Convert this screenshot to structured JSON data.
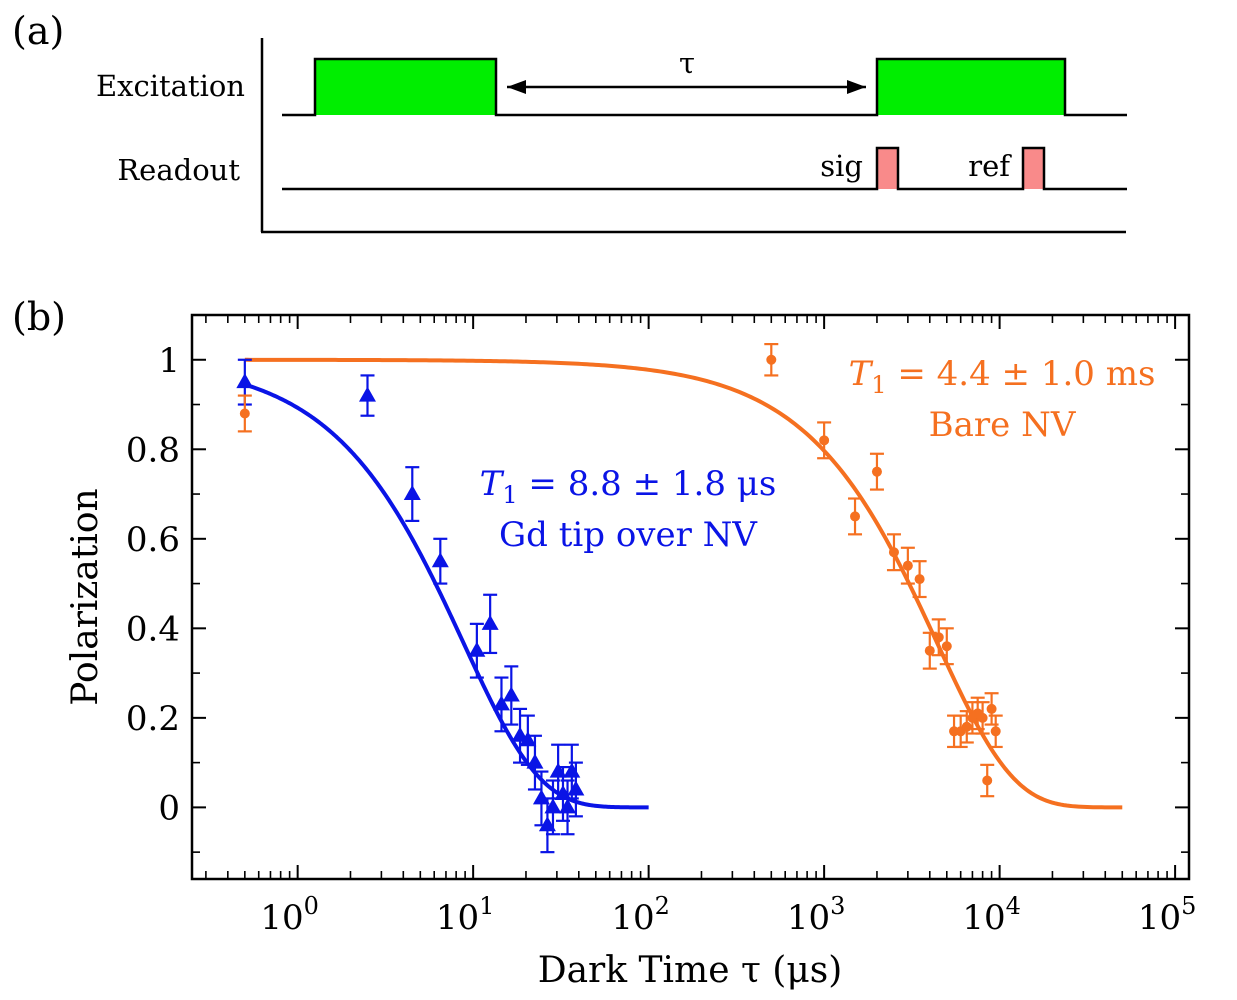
{
  "panel_a": {
    "label": "(a)",
    "rows": {
      "excitation": "Excitation",
      "readout": "Readout"
    },
    "tau_label": "τ",
    "pulse_labels": {
      "sig": "sig",
      "ref": "ref"
    },
    "colors": {
      "excitation_pulse": "#00ee00",
      "readout_pulse": "#f98a8a"
    }
  },
  "panel_b": {
    "label": "(b)"
  },
  "chart_data": {
    "type": "scatter",
    "xlabel": "Dark Time τ (μs)",
    "ylabel": "Polarization",
    "xscale": "log",
    "xlim": [
      0.25,
      120000
    ],
    "ylim": [
      -0.16,
      1.1
    ],
    "xticks": [
      1,
      10,
      100,
      1000,
      10000,
      100000
    ],
    "xtick_labels": [
      {
        "base": "10",
        "exp": "0"
      },
      {
        "base": "10",
        "exp": "1"
      },
      {
        "base": "10",
        "exp": "2"
      },
      {
        "base": "10",
        "exp": "3"
      },
      {
        "base": "10",
        "exp": "4"
      },
      {
        "base": "10",
        "exp": "5"
      }
    ],
    "yticks": [
      0,
      0.2,
      0.4,
      0.6,
      0.8,
      1
    ],
    "ytick_labels": [
      "0",
      "0.2",
      "0.4",
      "0.6",
      "0.8",
      "1"
    ],
    "series": [
      {
        "color": "#0a14e6",
        "marker": "triangle",
        "points": [
          {
            "x": 0.5,
            "y": 0.95,
            "err": 0.05
          },
          {
            "x": 2.5,
            "y": 0.92,
            "err": 0.045
          },
          {
            "x": 4.5,
            "y": 0.7,
            "err": 0.06
          },
          {
            "x": 6.5,
            "y": 0.55,
            "err": 0.05
          },
          {
            "x": 10.5,
            "y": 0.35,
            "err": 0.06
          },
          {
            "x": 12.5,
            "y": 0.41,
            "err": 0.065
          },
          {
            "x": 14.5,
            "y": 0.23,
            "err": 0.06
          },
          {
            "x": 16.5,
            "y": 0.25,
            "err": 0.065
          },
          {
            "x": 18.5,
            "y": 0.16,
            "err": 0.06
          },
          {
            "x": 20.5,
            "y": 0.15,
            "err": 0.055
          },
          {
            "x": 22.5,
            "y": 0.1,
            "err": 0.06
          },
          {
            "x": 24.5,
            "y": 0.02,
            "err": 0.06
          },
          {
            "x": 26.5,
            "y": -0.04,
            "err": 0.06
          },
          {
            "x": 28.5,
            "y": 0.0,
            "err": 0.06
          },
          {
            "x": 30.5,
            "y": 0.08,
            "err": 0.06
          },
          {
            "x": 32.5,
            "y": 0.03,
            "err": 0.06
          },
          {
            "x": 34.5,
            "y": 0.0,
            "err": 0.06
          },
          {
            "x": 36.5,
            "y": 0.08,
            "err": 0.06
          },
          {
            "x": 38.5,
            "y": 0.04,
            "err": 0.06
          }
        ],
        "fit": {
          "model": "exp_decay",
          "T1": 8.8,
          "x_from": 0.5,
          "x_to": 100
        },
        "annotation": {
          "t_symbol": "T",
          "t_sub": "1",
          "text": " = 8.8 ± 1.8 μs",
          "line2": "Gd tip over NV"
        }
      },
      {
        "color": "#f57020",
        "marker": "circle",
        "points": [
          {
            "x": 0.5,
            "y": 0.88,
            "err": 0.04
          },
          {
            "x": 500,
            "y": 1.0,
            "err": 0.035
          },
          {
            "x": 1000,
            "y": 0.82,
            "err": 0.04
          },
          {
            "x": 1500,
            "y": 0.65,
            "err": 0.04
          },
          {
            "x": 2000,
            "y": 0.75,
            "err": 0.04
          },
          {
            "x": 2500,
            "y": 0.57,
            "err": 0.04
          },
          {
            "x": 3000,
            "y": 0.54,
            "err": 0.04
          },
          {
            "x": 3500,
            "y": 0.51,
            "err": 0.04
          },
          {
            "x": 4000,
            "y": 0.35,
            "err": 0.04
          },
          {
            "x": 4500,
            "y": 0.38,
            "err": 0.04
          },
          {
            "x": 5000,
            "y": 0.36,
            "err": 0.04
          },
          {
            "x": 5500,
            "y": 0.17,
            "err": 0.035
          },
          {
            "x": 6000,
            "y": 0.17,
            "err": 0.035
          },
          {
            "x": 6500,
            "y": 0.18,
            "err": 0.035
          },
          {
            "x": 7000,
            "y": 0.2,
            "err": 0.035
          },
          {
            "x": 7500,
            "y": 0.21,
            "err": 0.035
          },
          {
            "x": 8000,
            "y": 0.2,
            "err": 0.035
          },
          {
            "x": 8500,
            "y": 0.06,
            "err": 0.035
          },
          {
            "x": 9000,
            "y": 0.22,
            "err": 0.035
          },
          {
            "x": 9500,
            "y": 0.17,
            "err": 0.035
          }
        ],
        "fit": {
          "model": "exp_decay",
          "T1": 4400,
          "x_from": 0.5,
          "x_to": 50000
        },
        "annotation": {
          "t_symbol": "T",
          "t_sub": "1",
          "text": " = 4.4 ± 1.0 ms",
          "line2": "Bare NV"
        }
      }
    ]
  }
}
